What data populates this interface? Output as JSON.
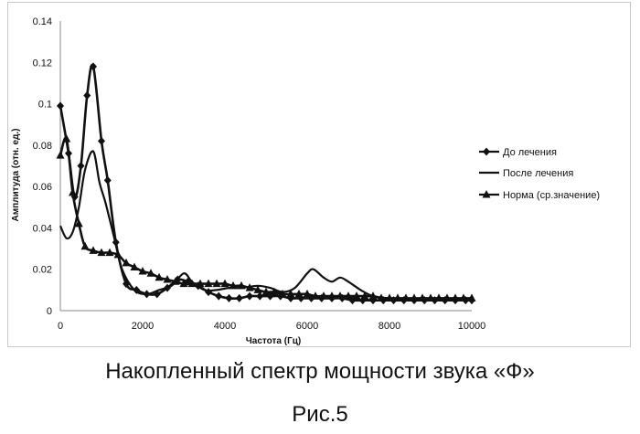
{
  "caption": "Накопленный  спектр мощности звука «Ф»",
  "figure_label": "Рис.5",
  "chart_data": {
    "type": "line",
    "xlabel": "Частота (Гц)",
    "ylabel": "Амплитуда (отн. ед.)",
    "xlim": [
      0,
      10000
    ],
    "ylim": [
      0,
      0.14
    ],
    "x_ticks": [
      "0",
      "2000",
      "4000",
      "6000",
      "8000",
      "10000"
    ],
    "y_ticks": [
      "0",
      "0.02",
      "0.04",
      "0.06",
      "0.08",
      "0.1",
      "0.12",
      "0.14"
    ],
    "grid": false,
    "legend_position": "right",
    "series": [
      {
        "name": "До лечения",
        "marker": "diamond",
        "x": [
          0,
          200,
          350,
          500,
          650,
          800,
          1000,
          1150,
          1350,
          1600,
          1850,
          2100,
          2350,
          2600,
          2850,
          3100,
          3350,
          3600,
          3850,
          4100,
          4350,
          4600,
          4850,
          5100,
          5350,
          5600,
          5850,
          6100,
          6350,
          6600,
          6850,
          7100,
          7350,
          7600,
          7850,
          8100,
          8350,
          8600,
          8850,
          9100,
          9350,
          9600,
          9850,
          10000
        ],
        "y": [
          0.099,
          0.076,
          0.055,
          0.07,
          0.104,
          0.118,
          0.082,
          0.063,
          0.033,
          0.013,
          0.01,
          0.008,
          0.008,
          0.011,
          0.015,
          0.014,
          0.012,
          0.009,
          0.007,
          0.006,
          0.006,
          0.007,
          0.007,
          0.007,
          0.007,
          0.006,
          0.006,
          0.006,
          0.006,
          0.006,
          0.006,
          0.005,
          0.005,
          0.005,
          0.005,
          0.005,
          0.005,
          0.005,
          0.005,
          0.005,
          0.005,
          0.005,
          0.005,
          0.005
        ]
      },
      {
        "name": "После лечения",
        "marker": "none",
        "x": [
          0,
          150,
          300,
          450,
          600,
          800,
          950,
          1100,
          1300,
          1500,
          1800,
          2100,
          2400,
          2700,
          3000,
          3200,
          3500,
          3800,
          4100,
          4400,
          4800,
          5100,
          5400,
          5700,
          6000,
          6150,
          6400,
          6600,
          6800,
          7000,
          7300,
          7600,
          8000,
          8500,
          9000,
          9500,
          10000
        ],
        "y": [
          0.041,
          0.035,
          0.038,
          0.05,
          0.068,
          0.077,
          0.062,
          0.052,
          0.036,
          0.02,
          0.01,
          0.008,
          0.01,
          0.012,
          0.018,
          0.014,
          0.01,
          0.01,
          0.011,
          0.011,
          0.012,
          0.011,
          0.009,
          0.011,
          0.018,
          0.02,
          0.016,
          0.014,
          0.016,
          0.014,
          0.01,
          0.007,
          0.006,
          0.005,
          0.005,
          0.005,
          0.005
        ]
      },
      {
        "name": "Норма (ср.значение)",
        "marker": "triangle",
        "x": [
          0,
          150,
          300,
          450,
          600,
          800,
          1000,
          1200,
          1400,
          1600,
          1800,
          2000,
          2200,
          2400,
          2600,
          2800,
          3000,
          3200,
          3400,
          3600,
          3800,
          4000,
          4200,
          4400,
          4600,
          4800,
          5000,
          5200,
          5400,
          5600,
          5800,
          6000,
          6200,
          6400,
          6600,
          6800,
          7000,
          7200,
          7400,
          7600,
          7800,
          8000,
          8200,
          8400,
          8600,
          8800,
          9000,
          9200,
          9400,
          9600,
          9800,
          10000
        ],
        "y": [
          0.075,
          0.083,
          0.057,
          0.042,
          0.031,
          0.029,
          0.028,
          0.028,
          0.027,
          0.023,
          0.021,
          0.019,
          0.018,
          0.016,
          0.015,
          0.014,
          0.013,
          0.013,
          0.013,
          0.013,
          0.013,
          0.013,
          0.012,
          0.012,
          0.011,
          0.01,
          0.009,
          0.009,
          0.008,
          0.008,
          0.008,
          0.008,
          0.007,
          0.007,
          0.007,
          0.007,
          0.007,
          0.007,
          0.007,
          0.007,
          0.006,
          0.006,
          0.006,
          0.006,
          0.006,
          0.006,
          0.006,
          0.006,
          0.006,
          0.006,
          0.006,
          0.006
        ]
      }
    ]
  },
  "colors": {
    "series": "#111111",
    "axis": "#888888",
    "frame": "#c8c8c8"
  }
}
